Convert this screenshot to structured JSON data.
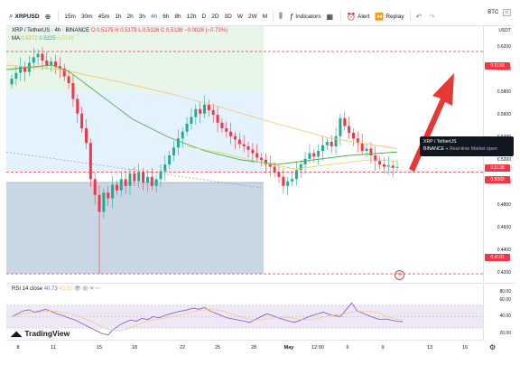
{
  "toolbar": {
    "symbol": "XRPUSD",
    "intervals": [
      "15m",
      "30m",
      "45m",
      "1h",
      "2h",
      "3h",
      "4h",
      "6h",
      "8h",
      "12h",
      "D",
      "2D",
      "3D",
      "W",
      "2W",
      "M"
    ],
    "active_interval": "4h",
    "indicators_label": "Indicators",
    "alert_label": "Alert",
    "replay_label": "Replay",
    "ticker_right": "BTC"
  },
  "legend": {
    "title": "XRP / TetherUS · 4h · BINANCE",
    "o": "O 0.5179",
    "h": "H 0.5179",
    "l": "L 0.5126",
    "c": "C 0.5138",
    "change": "−0.0028 (−0.73%)",
    "ma_label": "MA",
    "ma_values": [
      "0.5272",
      "0.5225",
      "0.5149"
    ]
  },
  "info_box": {
    "line1": "XRP / TetherUS",
    "line2a": "BINANCE",
    "line2b": "Real-time",
    "line2c": "Market open"
  },
  "price_axis": {
    "currency": "USDT",
    "labels": [
      "0.6200",
      "0.6000",
      "0.5800",
      "0.5600",
      "0.5400",
      "0.5200",
      "0.5000",
      "0.4800",
      "0.4600",
      "0.4400",
      "0.4200"
    ],
    "tags": {
      "upper_dashed": "0.6160",
      "last_price": "0.5138",
      "current": "0.5093",
      "lower_dashed": "0.4191"
    }
  },
  "rsi": {
    "label": "RSI 14 close",
    "value": "40.73",
    "value2": "45.20",
    "axis_labels": [
      "80.00",
      "60.00",
      "40.00",
      "20.00"
    ]
  },
  "time_axis": {
    "labels": [
      "8",
      "11",
      "15",
      "18",
      "22",
      "25",
      "28",
      "May",
      "12:00",
      "6",
      "9",
      "13",
      "16"
    ]
  },
  "logo_text": "TradingView",
  "colors": {
    "up": "#22ab94",
    "down": "#f23645",
    "accent": "#2962ff",
    "arrow": "#e53935",
    "green_zone": "#e8f5e9",
    "blue_zone": "#e3f2fd",
    "dark_blue_zone": "#bfd0e0",
    "ma_orange": "#f7c873",
    "ma_green": "#4caf50",
    "rsi_purple": "#7e57c2"
  }
}
